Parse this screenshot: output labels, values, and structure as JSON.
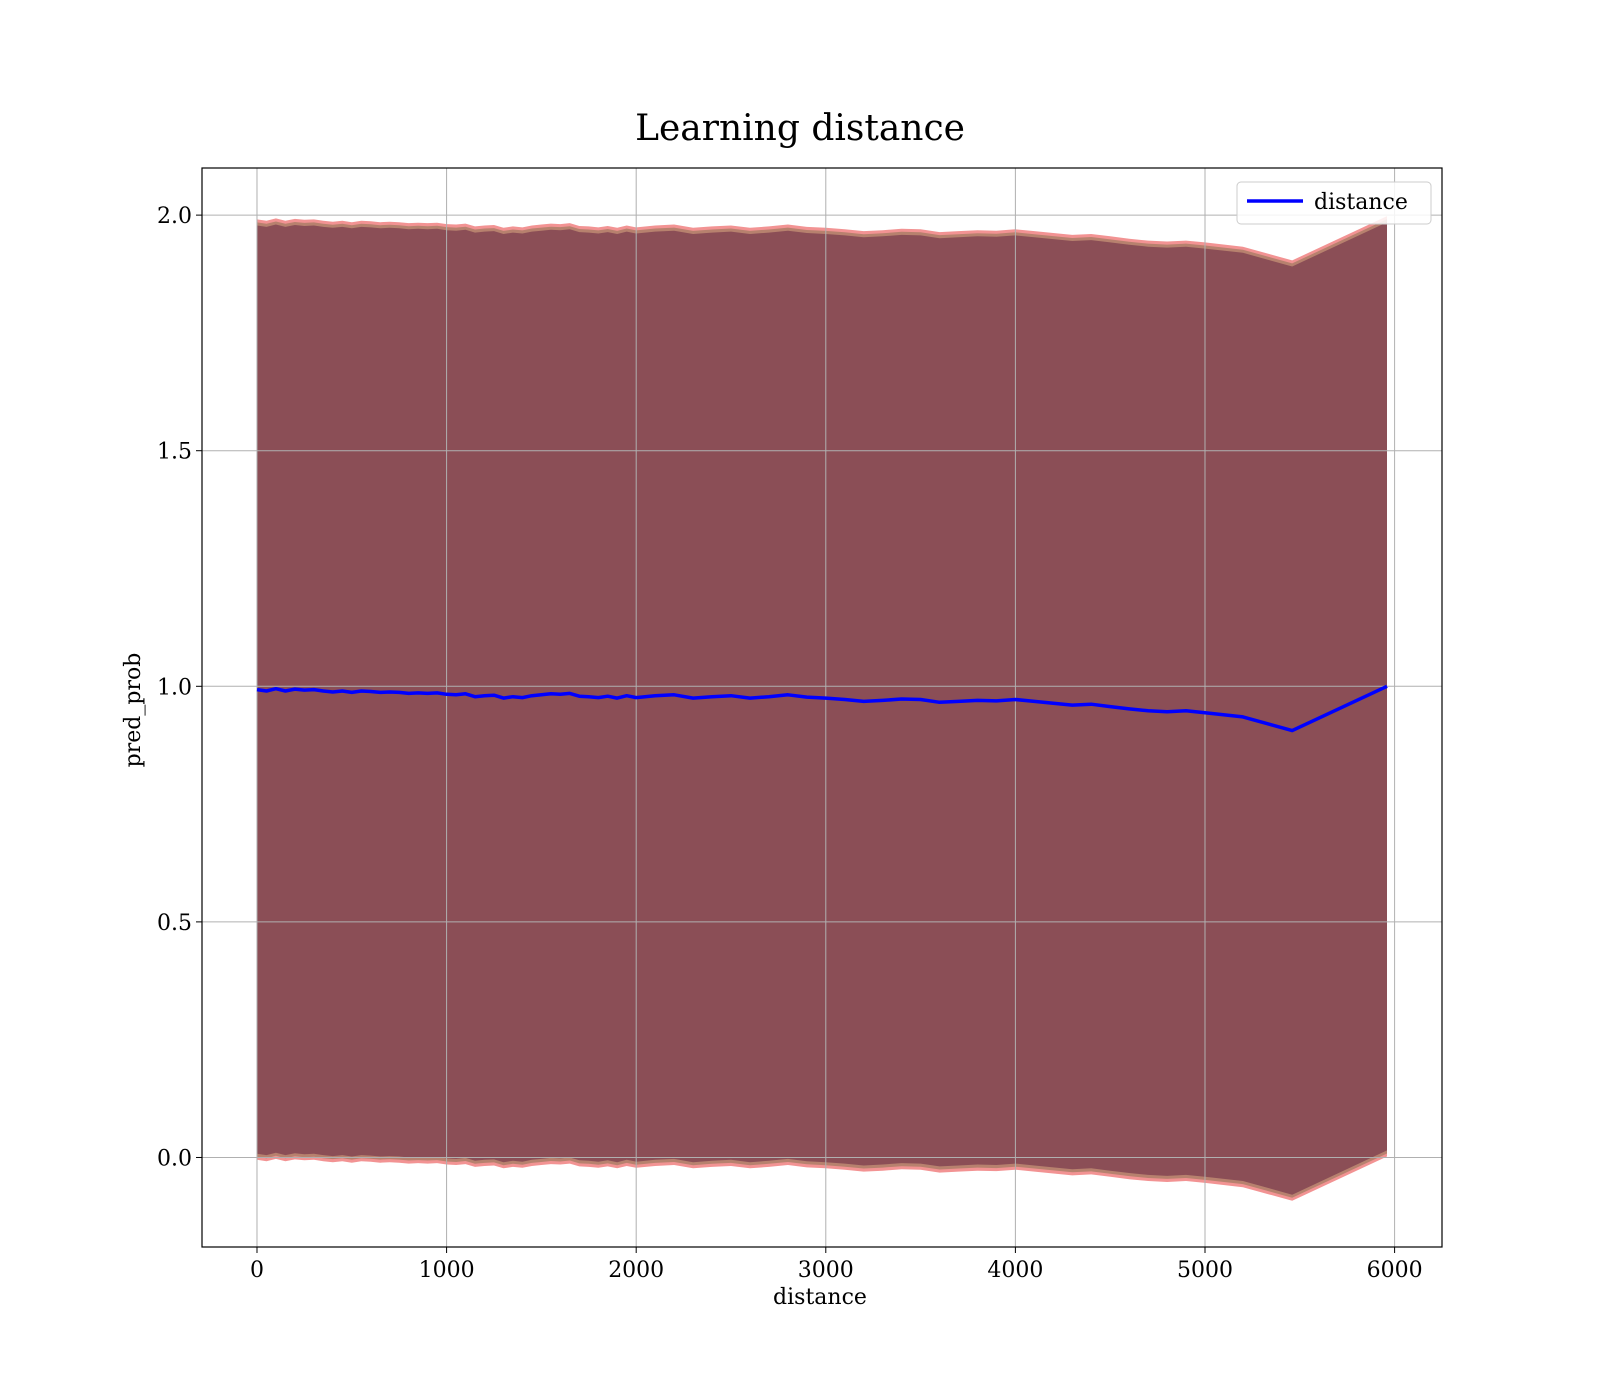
{
  "chart_data": {
    "type": "area",
    "title": "Learning distance",
    "xlabel": "distance",
    "ylabel": "pred_prob",
    "xlim": [
      -290,
      6250
    ],
    "ylim": [
      -0.19,
      2.1
    ],
    "xticks": [
      0,
      1000,
      2000,
      3000,
      4000,
      5000,
      6000
    ],
    "yticks": [
      0.0,
      0.5,
      1.0,
      1.5,
      2.0
    ],
    "xtick_labels": [
      "0",
      "1000",
      "2000",
      "3000",
      "4000",
      "5000",
      "6000"
    ],
    "ytick_labels": [
      "0.0",
      "0.5",
      "1.0",
      "1.5",
      "2.0"
    ],
    "grid": true,
    "legend": {
      "position": "top-right",
      "entries": [
        "distance"
      ]
    },
    "colors": {
      "line": "#0000ff",
      "outer_band": "#f08080",
      "inner_band": "#7a3a4e",
      "mid_band": "#b0806a",
      "grid": "#b0b0b0"
    },
    "series": [
      {
        "name": "distance",
        "x": [
          0,
          50,
          100,
          150,
          200,
          250,
          300,
          350,
          400,
          450,
          500,
          550,
          600,
          650,
          700,
          750,
          800,
          850,
          900,
          950,
          1000,
          1050,
          1100,
          1150,
          1200,
          1250,
          1300,
          1350,
          1400,
          1450,
          1500,
          1550,
          1600,
          1650,
          1700,
          1750,
          1800,
          1850,
          1900,
          1950,
          2000,
          2100,
          2200,
          2300,
          2400,
          2500,
          2600,
          2700,
          2800,
          2900,
          3000,
          3100,
          3200,
          3300,
          3400,
          3500,
          3600,
          3700,
          3800,
          3900,
          4000,
          4100,
          4200,
          4300,
          4400,
          4500,
          4600,
          4700,
          4800,
          4900,
          5000,
          5200,
          5460,
          5960
        ],
        "y": [
          0.993,
          0.99,
          0.995,
          0.99,
          0.994,
          0.992,
          0.993,
          0.99,
          0.988,
          0.99,
          0.987,
          0.99,
          0.989,
          0.987,
          0.988,
          0.987,
          0.985,
          0.986,
          0.985,
          0.986,
          0.983,
          0.982,
          0.984,
          0.978,
          0.98,
          0.981,
          0.975,
          0.978,
          0.976,
          0.98,
          0.982,
          0.984,
          0.983,
          0.985,
          0.979,
          0.978,
          0.976,
          0.979,
          0.975,
          0.98,
          0.976,
          0.98,
          0.982,
          0.975,
          0.978,
          0.98,
          0.975,
          0.978,
          0.982,
          0.977,
          0.975,
          0.972,
          0.968,
          0.97,
          0.973,
          0.972,
          0.966,
          0.968,
          0.97,
          0.969,
          0.972,
          0.968,
          0.964,
          0.96,
          0.962,
          0.957,
          0.952,
          0.948,
          0.946,
          0.948,
          0.944,
          0.935,
          0.906,
          1.0
        ],
        "band_outer_halfwidth": 0.998,
        "band_inner_halfwidth": 0.985
      }
    ]
  }
}
